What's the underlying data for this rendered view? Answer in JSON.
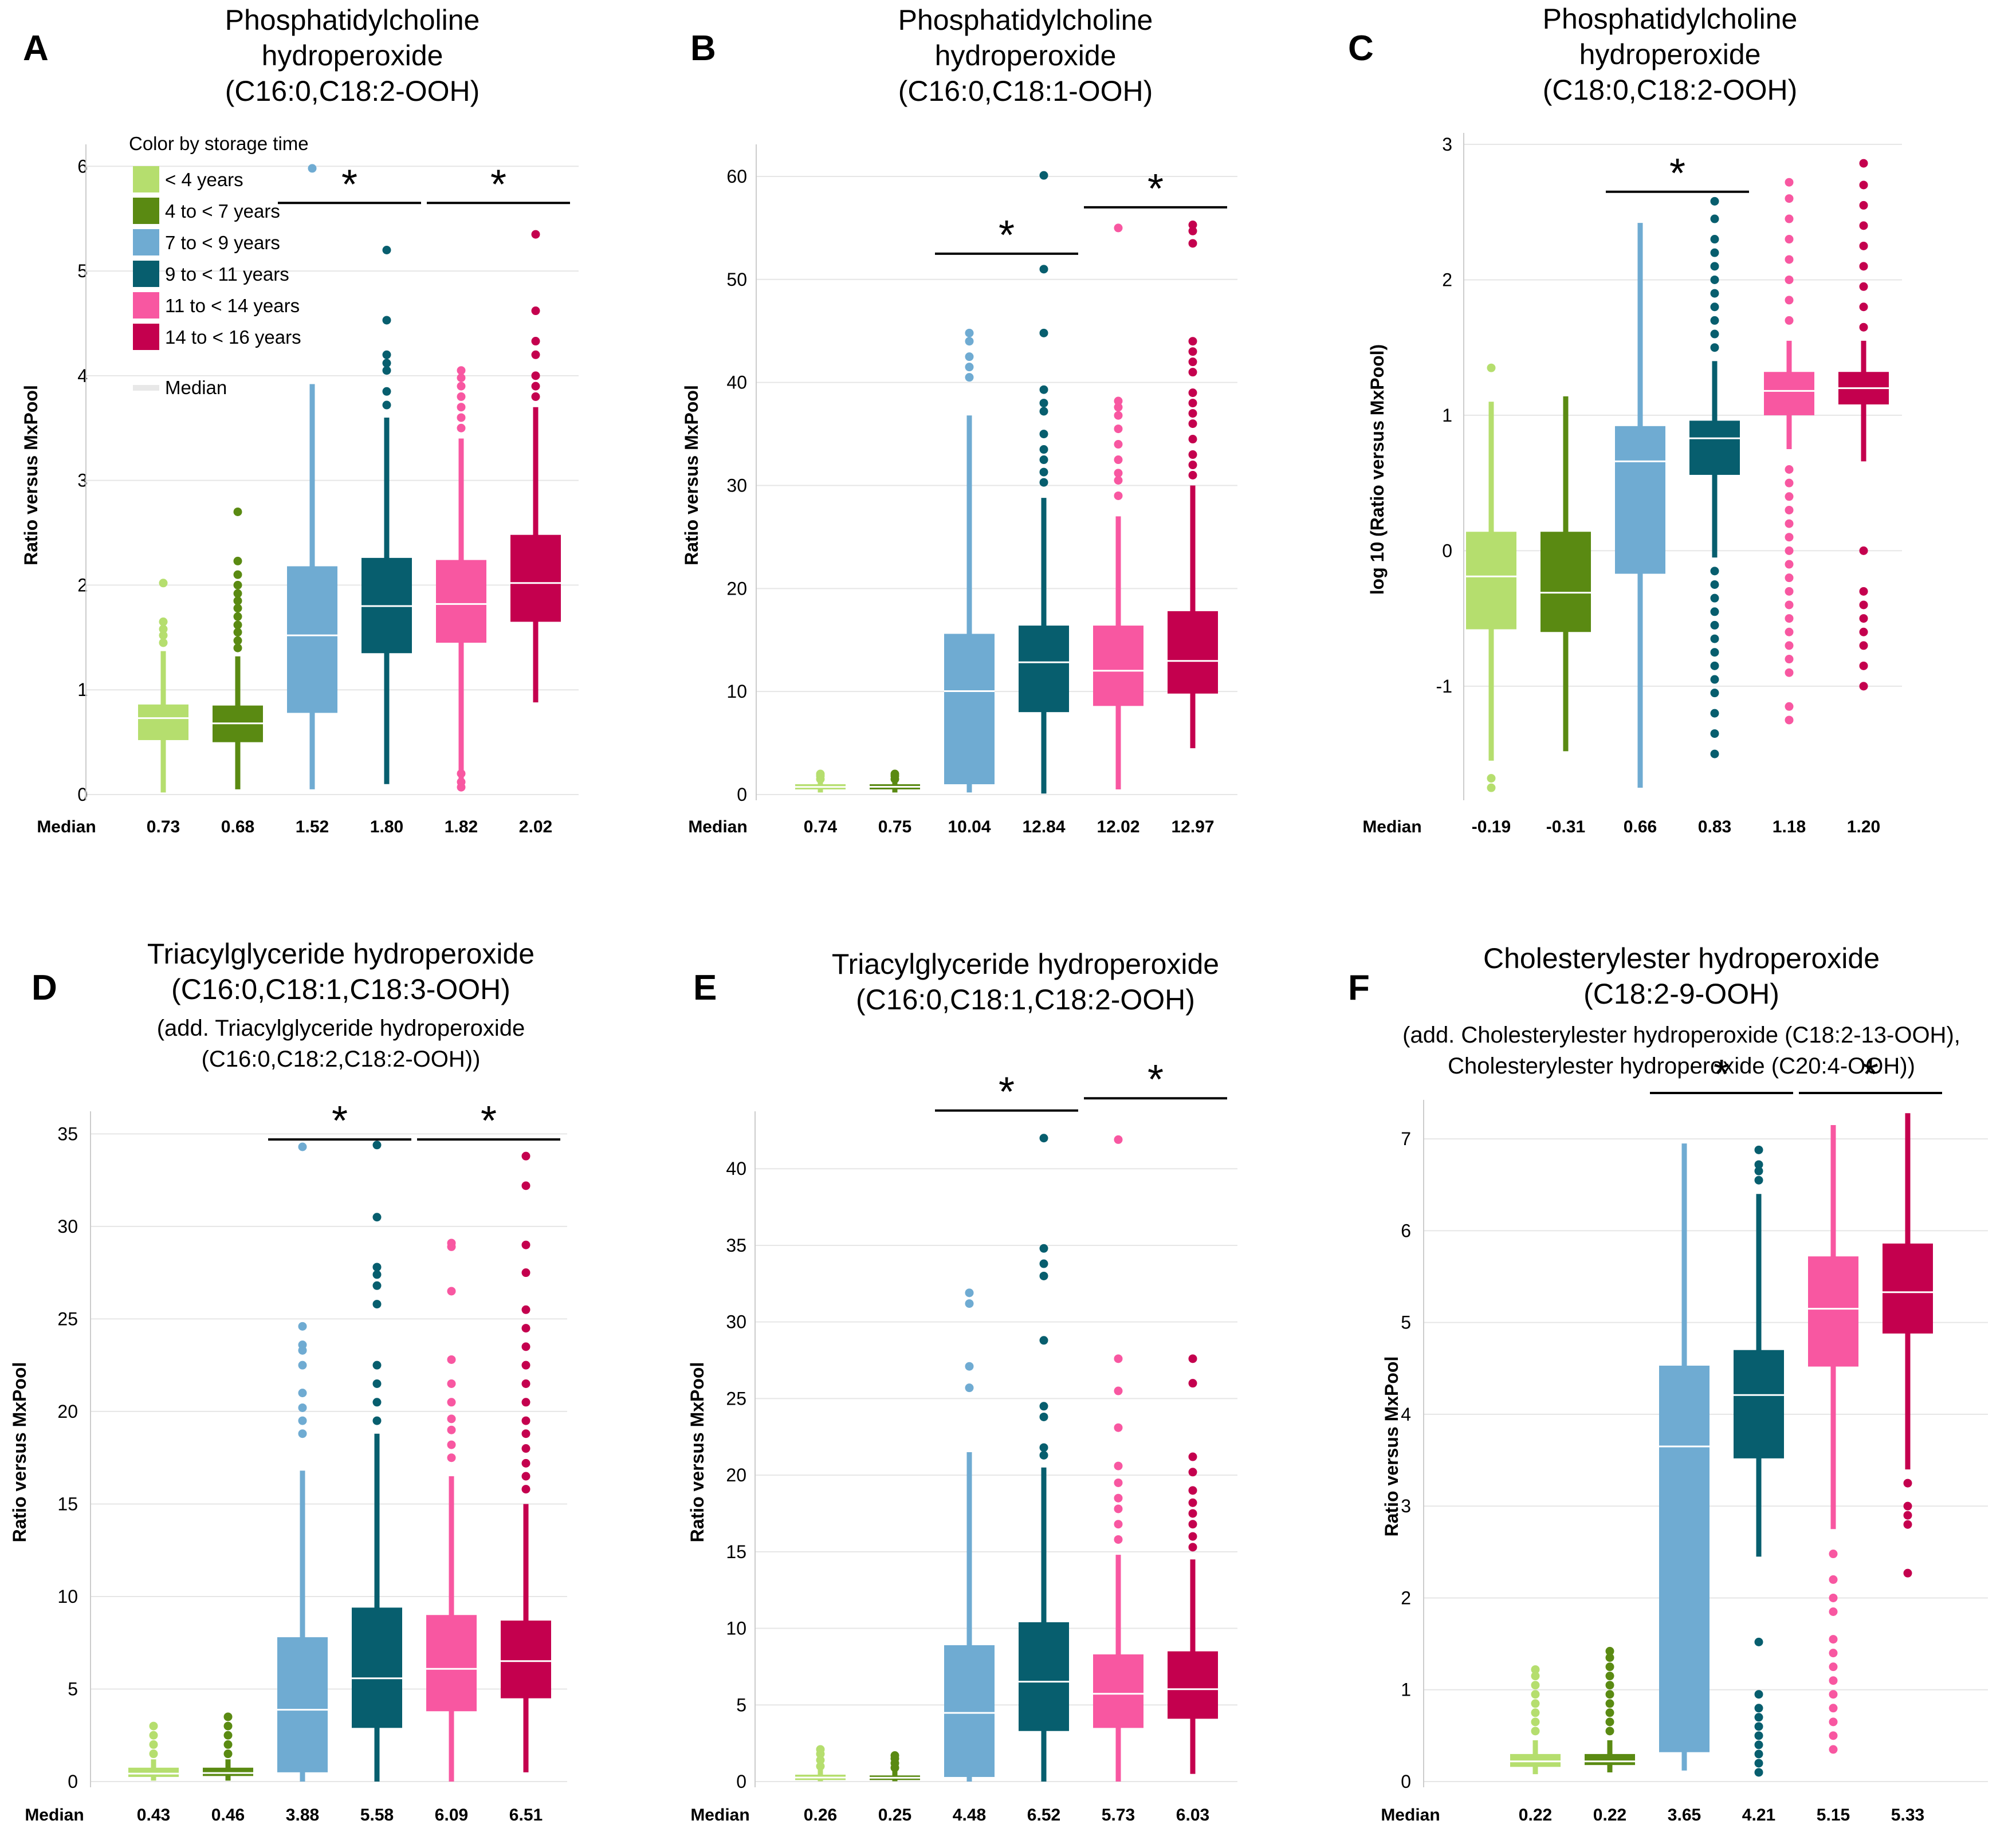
{
  "figure": {
    "median_label": "Median",
    "legend": {
      "title": "Color by storage time",
      "items": [
        {
          "label": "< 4 years",
          "color": "#b5de6e"
        },
        {
          "label": "4 to < 7 years",
          "color": "#5a8a12"
        },
        {
          "label": "7 to < 9 years",
          "color": "#6fabd2"
        },
        {
          "label": "9 to < 11 years",
          "color": "#075e6e"
        },
        {
          "label": "11 to < 14 years",
          "color": "#f857a1"
        },
        {
          "label": "14 to < 16 years",
          "color": "#c4004e"
        }
      ],
      "median_item": "Median"
    }
  },
  "chart_data": [
    {
      "panel": "A",
      "type": "box",
      "title_lines": [
        "Phosphatidylcholine",
        "hydroperoxide",
        "(C16:0,C18:2-OOH)"
      ],
      "subtitle_lines": [],
      "ylabel": "Ratio versus MxPool",
      "ylim": [
        0,
        6.1
      ],
      "yticks": [
        0,
        1,
        2,
        3,
        4,
        5,
        6
      ],
      "categories": [
        "< 4 years",
        "4 to < 7 years",
        "7 to < 9 years",
        "9 to < 11 years",
        "11 to < 14 years",
        "14 to < 16 years"
      ],
      "median_labels": [
        "0.73",
        "0.68",
        "1.52",
        "1.80",
        "1.82",
        "2.02"
      ],
      "boxes": [
        {
          "q1": 0.52,
          "median": 0.73,
          "q3": 0.86,
          "lo": 0.02,
          "hi": 1.37,
          "outliers": [
            1.45,
            1.52,
            1.58,
            1.65,
            2.02
          ]
        },
        {
          "q1": 0.5,
          "median": 0.68,
          "q3": 0.85,
          "lo": 0.05,
          "hi": 1.32,
          "outliers": [
            1.4,
            1.47,
            1.55,
            1.62,
            1.7,
            1.78,
            1.85,
            1.92,
            2.0,
            2.1,
            2.23,
            2.7
          ]
        },
        {
          "q1": 0.78,
          "median": 1.52,
          "q3": 2.18,
          "lo": 0.05,
          "hi": 3.92,
          "outliers": [
            5.98
          ]
        },
        {
          "q1": 1.35,
          "median": 1.8,
          "q3": 2.26,
          "lo": 0.1,
          "hi": 3.6,
          "outliers": [
            3.72,
            3.85,
            4.05,
            4.12,
            4.2,
            4.53,
            5.2
          ]
        },
        {
          "q1": 1.45,
          "median": 1.82,
          "q3": 2.24,
          "lo": 0.1,
          "hi": 3.4,
          "outliers": [
            0.07,
            0.12,
            0.2,
            3.5,
            3.6,
            3.7,
            3.8,
            3.9,
            3.98,
            4.05
          ]
        },
        {
          "q1": 1.65,
          "median": 2.02,
          "q3": 2.48,
          "lo": 0.88,
          "hi": 3.7,
          "outliers": [
            3.8,
            3.9,
            4.0,
            4.2,
            4.33,
            4.62,
            5.35
          ]
        }
      ],
      "significance": [
        {
          "from": 2,
          "to": 3,
          "y": 5.65,
          "label": "*"
        },
        {
          "from": 4,
          "to": 5,
          "y": 5.65,
          "label": "*"
        }
      ]
    },
    {
      "panel": "B",
      "type": "box",
      "title_lines": [
        "Phosphatidylcholine",
        "hydroperoxide",
        "(C16:0,C18:1-OOH)"
      ],
      "subtitle_lines": [],
      "ylabel": "Ratio versus MxPool",
      "ylim": [
        0,
        62
      ],
      "yticks": [
        0,
        10,
        20,
        30,
        40,
        50,
        60
      ],
      "categories": [
        "< 4 years",
        "4 to < 7 years",
        "7 to < 9 years",
        "9 to < 11 years",
        "11 to < 14 years",
        "14 to < 16 years"
      ],
      "median_labels": [
        "0.74",
        "0.75",
        "10.04",
        "12.84",
        "12.02",
        "12.97"
      ],
      "boxes": [
        {
          "q1": 0.5,
          "median": 0.74,
          "q3": 1.0,
          "lo": 0.2,
          "hi": 1.3,
          "outliers": [
            1.5,
            1.8,
            2.0
          ]
        },
        {
          "q1": 0.5,
          "median": 0.75,
          "q3": 1.0,
          "lo": 0.2,
          "hi": 1.3,
          "outliers": [
            1.5,
            1.8,
            2.0
          ]
        },
        {
          "q1": 1.0,
          "median": 10.04,
          "q3": 15.6,
          "lo": 0.2,
          "hi": 36.8,
          "outliers": [
            40.5,
            41.5,
            42.5,
            44.0,
            44.8
          ]
        },
        {
          "q1": 8.0,
          "median": 12.84,
          "q3": 16.4,
          "lo": 0.1,
          "hi": 28.8,
          "outliers": [
            30.3,
            31.3,
            32.5,
            33.5,
            35.0,
            37.2,
            38.0,
            39.3,
            44.8,
            51.0,
            60.1
          ]
        },
        {
          "q1": 8.6,
          "median": 12.02,
          "q3": 16.4,
          "lo": 0.5,
          "hi": 27.0,
          "outliers": [
            29.0,
            30.5,
            31.2,
            32.5,
            34.0,
            35.5,
            36.8,
            37.6,
            38.2,
            55.0
          ]
        },
        {
          "q1": 9.8,
          "median": 12.97,
          "q3": 17.8,
          "lo": 4.5,
          "hi": 30.0,
          "outliers": [
            31.0,
            32.0,
            33.0,
            34.5,
            36.0,
            37.0,
            38.0,
            39.0,
            41.0,
            42.0,
            43.0,
            44.0,
            53.5,
            54.7,
            55.3
          ]
        }
      ],
      "significance": [
        {
          "from": 2,
          "to": 3,
          "y": 52.5,
          "label": "*"
        },
        {
          "from": 4,
          "to": 5,
          "y": 57.0,
          "label": "*"
        }
      ]
    },
    {
      "panel": "C",
      "type": "box",
      "title_lines": [
        "Phosphatidylcholine",
        "hydroperoxide",
        "(C18:0,C18:2-OOH)"
      ],
      "subtitle_lines": [],
      "ylabel": "log 10 (Ratio versus MxPool)",
      "ylim": [
        -1.8,
        3.0
      ],
      "yticks": [
        -1,
        0,
        1,
        2,
        3
      ],
      "categories": [
        "< 4 years",
        "4 to < 7 years",
        "7 to < 9 years",
        "9 to < 11 years",
        "11 to < 14 years",
        "14 to < 16 years"
      ],
      "median_labels": [
        "-0.19",
        "-0.31",
        "0.66",
        "0.83",
        "1.18",
        "1.20"
      ],
      "boxes": [
        {
          "q1": -0.58,
          "median": -0.19,
          "q3": 0.14,
          "lo": -1.55,
          "hi": 1.1,
          "outliers": [
            -1.68,
            -1.75,
            1.35
          ]
        },
        {
          "q1": -0.6,
          "median": -0.31,
          "q3": 0.14,
          "lo": -1.48,
          "hi": 1.14,
          "outliers": []
        },
        {
          "q1": -0.17,
          "median": 0.66,
          "q3": 0.92,
          "lo": -1.75,
          "hi": 2.42,
          "outliers": []
        },
        {
          "q1": 0.56,
          "median": 0.83,
          "q3": 0.96,
          "lo": -0.05,
          "hi": 1.4,
          "outliers": [
            -1.5,
            -1.35,
            -1.2,
            -1.05,
            -0.95,
            -0.85,
            -0.75,
            -0.65,
            -0.55,
            -0.45,
            -0.35,
            -0.25,
            -0.15,
            1.5,
            1.6,
            1.7,
            1.8,
            1.9,
            2.0,
            2.1,
            2.2,
            2.3,
            2.45,
            2.58
          ]
        },
        {
          "q1": 1.0,
          "median": 1.18,
          "q3": 1.32,
          "lo": 0.75,
          "hi": 1.55,
          "outliers": [
            -1.25,
            -1.15,
            -0.9,
            -0.8,
            -0.7,
            -0.6,
            -0.5,
            -0.4,
            -0.3,
            -0.2,
            -0.1,
            0.0,
            0.1,
            0.2,
            0.3,
            0.4,
            0.5,
            0.6,
            1.7,
            1.85,
            2.0,
            2.15,
            2.3,
            2.45,
            2.6,
            2.72
          ]
        },
        {
          "q1": 1.08,
          "median": 1.2,
          "q3": 1.32,
          "lo": 0.66,
          "hi": 1.55,
          "outliers": [
            -1.0,
            -0.85,
            -0.7,
            -0.6,
            -0.5,
            -0.4,
            -0.3,
            0.0,
            1.65,
            1.8,
            1.95,
            2.1,
            2.25,
            2.4,
            2.55,
            2.7,
            2.86
          ]
        }
      ],
      "significance": [
        {
          "from": 2,
          "to": 3,
          "y": 2.65,
          "label": "*"
        }
      ]
    },
    {
      "panel": "D",
      "type": "box",
      "title_lines": [
        "Triacylglyceride hydroperoxide",
        "(C16:0,C18:1,C18:3-OOH)"
      ],
      "subtitle_lines": [
        "(add. Triacylglyceride hydroperoxide",
        "(C16:0,C18:2,C18:2-OOH))"
      ],
      "ylabel": "Ratio versus MxPool",
      "ylim": [
        0,
        35.6
      ],
      "yticks": [
        0,
        5,
        10,
        15,
        20,
        25,
        30,
        35
      ],
      "categories": [
        "< 4 years",
        "4 to < 7 years",
        "7 to < 9 years",
        "9 to < 11 years",
        "11 to < 14 years",
        "14 to < 16 years"
      ],
      "median_labels": [
        "0.43",
        "0.46",
        "3.88",
        "5.58",
        "6.09",
        "6.51"
      ],
      "boxes": [
        {
          "q1": 0.25,
          "median": 0.43,
          "q3": 0.75,
          "lo": 0.05,
          "hi": 1.2,
          "outliers": [
            1.5,
            2.0,
            2.5,
            3.0
          ]
        },
        {
          "q1": 0.3,
          "median": 0.46,
          "q3": 0.75,
          "lo": 0.05,
          "hi": 1.2,
          "outliers": [
            1.5,
            2.0,
            2.5,
            3.0,
            3.5
          ]
        },
        {
          "q1": 0.5,
          "median": 3.88,
          "q3": 7.8,
          "lo": 0.0,
          "hi": 16.8,
          "outliers": [
            18.8,
            19.5,
            20.2,
            21.0,
            22.5,
            23.3,
            23.6,
            24.6,
            34.3
          ]
        },
        {
          "q1": 2.9,
          "median": 5.58,
          "q3": 9.4,
          "lo": 0.0,
          "hi": 18.8,
          "outliers": [
            19.5,
            20.5,
            21.5,
            22.5,
            25.8,
            26.8,
            27.4,
            27.8,
            30.5,
            34.4
          ]
        },
        {
          "q1": 3.8,
          "median": 6.09,
          "q3": 9.0,
          "lo": 0.0,
          "hi": 16.5,
          "outliers": [
            17.5,
            18.2,
            19.0,
            19.6,
            20.5,
            21.5,
            22.8,
            26.5,
            28.9,
            29.1
          ]
        },
        {
          "q1": 4.5,
          "median": 6.51,
          "q3": 8.7,
          "lo": 0.5,
          "hi": 15.0,
          "outliers": [
            15.8,
            16.5,
            17.2,
            18.0,
            18.8,
            19.5,
            20.5,
            21.5,
            22.5,
            23.5,
            24.5,
            25.5,
            27.5,
            29.0,
            32.2,
            33.8
          ]
        }
      ],
      "significance": [
        {
          "from": 2,
          "to": 3,
          "y": 34.7,
          "label": "*"
        },
        {
          "from": 4,
          "to": 5,
          "y": 34.7,
          "label": "*"
        }
      ]
    },
    {
      "panel": "E",
      "type": "box",
      "title_lines": [
        "Triacylglyceride hydroperoxide",
        "(C16:0,C18:1,C18:2-OOH)"
      ],
      "subtitle_lines": [],
      "ylabel": "Ratio versus MxPool",
      "ylim": [
        0,
        43
      ],
      "yticks": [
        0,
        5,
        10,
        15,
        20,
        25,
        30,
        35,
        40
      ],
      "categories": [
        "< 4 years",
        "4 to < 7 years",
        "7 to < 9 years",
        "9 to < 11 years",
        "11 to < 14 years",
        "14 to < 16 years"
      ],
      "median_labels": [
        "0.26",
        "0.25",
        "4.48",
        "6.52",
        "5.73",
        "6.03"
      ],
      "boxes": [
        {
          "q1": 0.1,
          "median": 0.26,
          "q3": 0.45,
          "lo": 0.02,
          "hi": 0.8,
          "outliers": [
            1.0,
            1.4,
            1.8,
            2.1
          ]
        },
        {
          "q1": 0.1,
          "median": 0.25,
          "q3": 0.4,
          "lo": 0.02,
          "hi": 0.7,
          "outliers": [
            0.9,
            1.2,
            1.5,
            1.7
          ]
        },
        {
          "q1": 0.3,
          "median": 4.48,
          "q3": 8.9,
          "lo": 0.0,
          "hi": 21.5,
          "outliers": [
            25.7,
            27.1,
            31.2,
            31.9
          ]
        },
        {
          "q1": 3.3,
          "median": 6.52,
          "q3": 10.4,
          "lo": 0.0,
          "hi": 20.5,
          "outliers": [
            21.3,
            21.8,
            23.8,
            24.5,
            28.8,
            33.0,
            33.8,
            34.8,
            42.0
          ]
        },
        {
          "q1": 3.5,
          "median": 5.73,
          "q3": 8.3,
          "lo": 0.0,
          "hi": 14.8,
          "outliers": [
            15.8,
            16.8,
            17.8,
            18.5,
            19.5,
            20.6,
            23.1,
            25.5,
            27.6,
            41.9
          ]
        },
        {
          "q1": 4.1,
          "median": 6.03,
          "q3": 8.5,
          "lo": 0.5,
          "hi": 14.5,
          "outliers": [
            15.3,
            16.0,
            16.8,
            17.5,
            18.2,
            19.0,
            20.2,
            21.2,
            26.0,
            27.6
          ]
        }
      ],
      "significance": [
        {
          "from": 2,
          "to": 3,
          "y": 43.8,
          "label": "*"
        },
        {
          "from": 4,
          "to": 5,
          "y": 44.6,
          "label": "*"
        }
      ]
    },
    {
      "panel": "F",
      "type": "box",
      "title_lines": [
        "Cholesterylester hydroperoxide",
        "(C18:2-9-OOH)"
      ],
      "subtitle_lines": [
        "(add. Cholesterylester hydroperoxide (C18:2-13-OOH),",
        "Cholesterylester hydroperoxide (C20:4-OOH))"
      ],
      "ylabel": "Ratio versus MxPool",
      "ylim": [
        0,
        7.3
      ],
      "yticks": [
        0,
        1,
        2,
        3,
        4,
        5,
        6,
        7
      ],
      "categories": [
        "< 4 years",
        "4 to < 7 years",
        "7 to < 9 years",
        "9 to < 11 years",
        "11 to < 14 years",
        "14 to < 16 years"
      ],
      "median_labels": [
        "0.22",
        "0.22",
        "3.65",
        "4.21",
        "5.15",
        "5.33"
      ],
      "boxes": [
        {
          "q1": 0.16,
          "median": 0.22,
          "q3": 0.3,
          "lo": 0.08,
          "hi": 0.45,
          "outliers": [
            0.55,
            0.65,
            0.75,
            0.85,
            0.95,
            1.05,
            1.15,
            1.22
          ]
        },
        {
          "q1": 0.18,
          "median": 0.22,
          "q3": 0.3,
          "lo": 0.1,
          "hi": 0.45,
          "outliers": [
            0.55,
            0.65,
            0.75,
            0.85,
            0.95,
            1.05,
            1.15,
            1.25,
            1.35,
            1.42
          ]
        },
        {
          "q1": 0.32,
          "median": 3.65,
          "q3": 4.53,
          "lo": 0.12,
          "hi": 6.95,
          "outliers": []
        },
        {
          "q1": 3.52,
          "median": 4.21,
          "q3": 4.7,
          "lo": 2.45,
          "hi": 6.4,
          "outliers": [
            0.1,
            0.2,
            0.3,
            0.4,
            0.5,
            0.6,
            0.7,
            0.8,
            0.95,
            1.52,
            6.55,
            6.65,
            6.72,
            6.88
          ]
        },
        {
          "q1": 4.52,
          "median": 5.15,
          "q3": 5.72,
          "lo": 2.75,
          "hi": 7.15,
          "outliers": [
            0.35,
            0.5,
            0.65,
            0.8,
            0.95,
            1.1,
            1.25,
            1.4,
            1.55,
            1.85,
            2.0,
            2.2,
            2.48
          ]
        },
        {
          "q1": 4.88,
          "median": 5.33,
          "q3": 5.86,
          "lo": 3.4,
          "hi": 7.28,
          "outliers": [
            2.27,
            2.8,
            2.9,
            3.0,
            3.25
          ]
        }
      ],
      "significance": [
        {
          "from": 2,
          "to": 3,
          "y": 7.5,
          "label": "*"
        },
        {
          "from": 4,
          "to": 5,
          "y": 7.5,
          "label": "*"
        }
      ]
    }
  ]
}
